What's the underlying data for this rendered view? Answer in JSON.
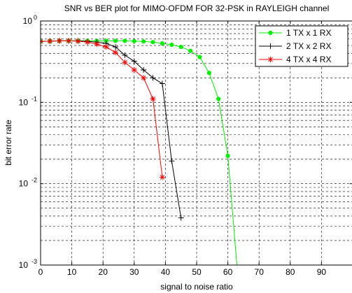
{
  "chart_data": {
    "type": "line",
    "title": "SNR vs BER plot for MIMO-OFDM FOR 32-PSK in RAYLEIGH channel",
    "xlabel": "signal to noise ratio",
    "ylabel": "bit error rate",
    "xlim": [
      0,
      100
    ],
    "ylim": [
      0.001,
      1
    ],
    "yscale": "log",
    "grid": true,
    "legend_position": "top-right",
    "xticks": [
      "0",
      "10",
      "20",
      "30",
      "40",
      "50",
      "60",
      "70",
      "80",
      "90"
    ],
    "yticks": [
      {
        "base": "10",
        "exp": "0",
        "value": 1
      },
      {
        "base": "10",
        "exp": "-1",
        "value": 0.1
      },
      {
        "base": "10",
        "exp": "-2",
        "value": 0.01
      },
      {
        "base": "10",
        "exp": "-3",
        "value": 0.001
      }
    ],
    "series": [
      {
        "name": "1 TX x 1 RX",
        "color": "#00ee00",
        "marker": "dot",
        "x": [
          0,
          3,
          6,
          9,
          12,
          15,
          18,
          21,
          24,
          27,
          30,
          33,
          36,
          39,
          42,
          45,
          48,
          51,
          54,
          57,
          60,
          63
        ],
        "y": [
          0.56,
          0.565,
          0.57,
          0.57,
          0.57,
          0.57,
          0.57,
          0.57,
          0.57,
          0.57,
          0.565,
          0.56,
          0.55,
          0.53,
          0.51,
          0.48,
          0.43,
          0.36,
          0.23,
          0.11,
          0.022,
          0.0009
        ]
      },
      {
        "name": "2 TX x 2 RX",
        "color": "#000000",
        "marker": "plus",
        "x": [
          0,
          3,
          6,
          9,
          12,
          15,
          18,
          21,
          24,
          27,
          30,
          33,
          36,
          39,
          42,
          45
        ],
        "y": [
          0.56,
          0.565,
          0.57,
          0.57,
          0.57,
          0.56,
          0.55,
          0.53,
          0.48,
          0.38,
          0.32,
          0.25,
          0.2,
          0.17,
          0.019,
          0.0038
        ]
      },
      {
        "name": "4 TX x 4 RX",
        "color": "#ff0000",
        "marker": "star",
        "x": [
          0,
          3,
          6,
          9,
          12,
          15,
          18,
          21,
          24,
          27,
          30,
          33,
          36,
          39
        ],
        "y": [
          0.56,
          0.565,
          0.57,
          0.57,
          0.565,
          0.55,
          0.52,
          0.48,
          0.41,
          0.31,
          0.25,
          0.2,
          0.11,
          0.012
        ]
      }
    ]
  }
}
